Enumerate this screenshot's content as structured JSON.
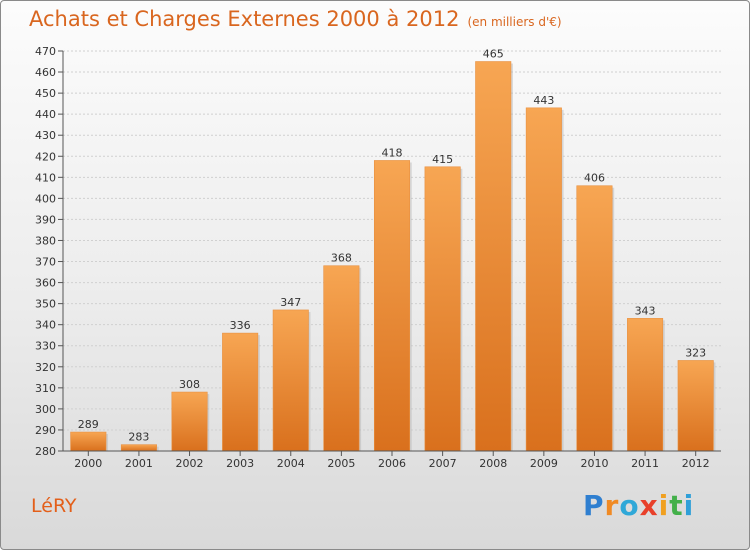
{
  "header": {
    "title": "Achats et Charges Externes 2000 à 2012",
    "unit": "(en milliers d'€)"
  },
  "footer": {
    "commune": "LéRY",
    "logo": [
      "P",
      "r",
      "o",
      "x",
      "i",
      "t",
      "i"
    ]
  },
  "colors": {
    "bar_top": "#f7a653",
    "bar_bottom": "#d9701d",
    "title": "#d9661f",
    "logo": [
      "#2f7fd0",
      "#f08a24",
      "#2fa8d8",
      "#e8402a",
      "#f0a020",
      "#43b04a",
      "#2f9fd8"
    ]
  },
  "chart_data": {
    "type": "bar",
    "title": "Achats et Charges Externes 2000 à 2012",
    "categories": [
      "2000",
      "2001",
      "2002",
      "2003",
      "2004",
      "2005",
      "2006",
      "2007",
      "2008",
      "2009",
      "2010",
      "2011",
      "2012"
    ],
    "values": [
      289,
      283,
      308,
      336,
      347,
      368,
      418,
      415,
      465,
      443,
      406,
      343,
      323
    ],
    "ylim": [
      280,
      470
    ],
    "yticks": [
      280,
      290,
      300,
      310,
      320,
      330,
      340,
      350,
      360,
      370,
      380,
      390,
      400,
      410,
      420,
      430,
      440,
      450,
      460,
      470
    ],
    "grid": true,
    "data_labels": true
  }
}
